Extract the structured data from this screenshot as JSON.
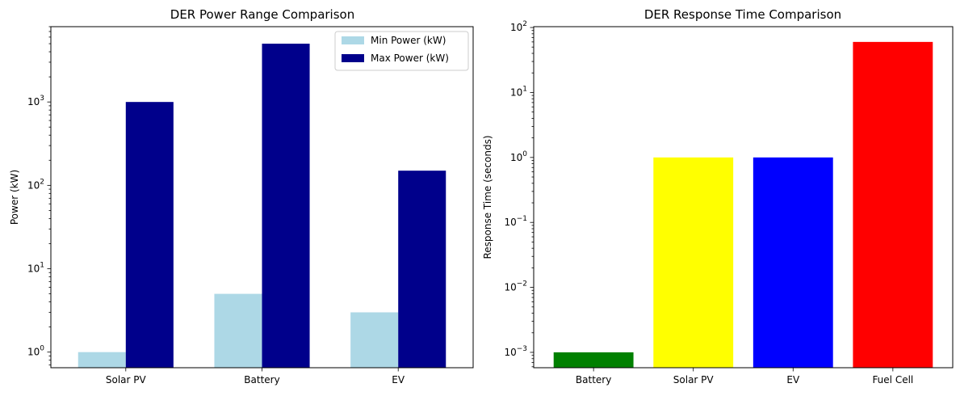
{
  "chart_data": [
    {
      "type": "bar",
      "title": "DER Power Range Comparison",
      "xlabel": "",
      "ylabel": "Power (kW)",
      "yscale": "log",
      "ylim": [
        0.65,
        8000
      ],
      "yticks": [
        {
          "base": "10",
          "exp": "0",
          "value": 1
        },
        {
          "base": "10",
          "exp": "1",
          "value": 10
        },
        {
          "base": "10",
          "exp": "2",
          "value": 100
        },
        {
          "base": "10",
          "exp": "3",
          "value": 1000
        }
      ],
      "categories": [
        "Solar PV",
        "Battery",
        "EV"
      ],
      "series": [
        {
          "name": "Min Power (kW)",
          "color": "#add8e6",
          "values": [
            1,
            5,
            3
          ]
        },
        {
          "name": "Max Power (kW)",
          "color": "#00008b",
          "values": [
            1000,
            5000,
            150
          ]
        }
      ],
      "legend_position": "top-right",
      "grid": false
    },
    {
      "type": "bar",
      "title": "DER Response Time Comparison",
      "xlabel": "",
      "ylabel": "Response Time (seconds)",
      "yscale": "log",
      "ylim": [
        0.00058,
        103
      ],
      "yticks": [
        {
          "base": "10",
          "exp": "−3",
          "value": 0.001
        },
        {
          "base": "10",
          "exp": "−2",
          "value": 0.01
        },
        {
          "base": "10",
          "exp": "−1",
          "value": 0.1
        },
        {
          "base": "10",
          "exp": "0",
          "value": 1
        },
        {
          "base": "10",
          "exp": "1",
          "value": 10
        },
        {
          "base": "10",
          "exp": "2",
          "value": 100
        }
      ],
      "categories": [
        "Battery",
        "Solar PV",
        "EV",
        "Fuel Cell"
      ],
      "values": [
        0.001,
        1,
        1,
        60
      ],
      "colors": [
        "#008000",
        "#ffff00",
        "#0000ff",
        "#ff0000"
      ],
      "grid": false
    }
  ]
}
